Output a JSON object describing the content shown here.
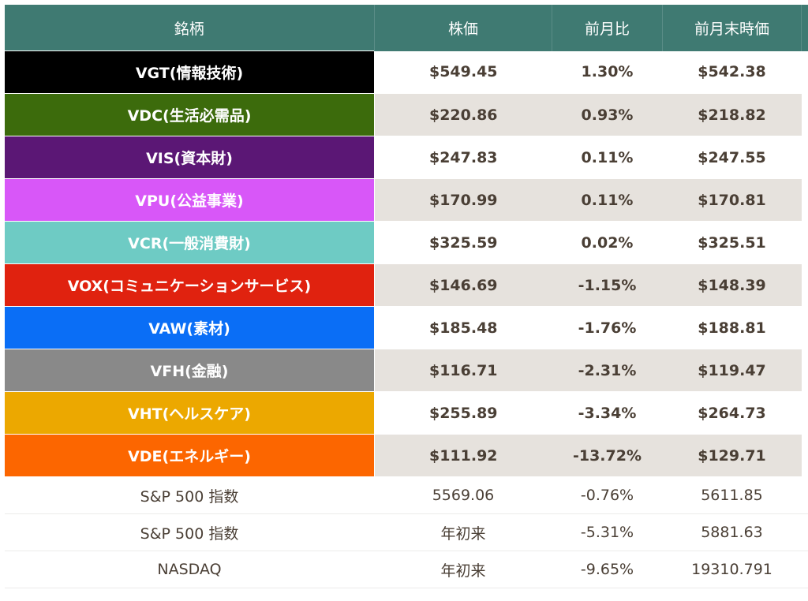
{
  "headers": [
    "銘柄",
    "株価",
    "前月比",
    "前月末時価"
  ],
  "sectors": [
    {
      "name": "VGT(情報技術)",
      "price": "$549.45",
      "change": "1.30%",
      "prev": "$542.38",
      "color": "#000000"
    },
    {
      "name": "VDC(生活必需品)",
      "price": "$220.86",
      "change": "0.93%",
      "prev": "$218.82",
      "color": "#3c6b0c"
    },
    {
      "name": "VIS(資本財)",
      "price": "$247.83",
      "change": "0.11%",
      "prev": "$247.55",
      "color": "#5b1775"
    },
    {
      "name": "VPU(公益事業)",
      "price": "$170.99",
      "change": "0.11%",
      "prev": "$170.81",
      "color": "#d857f8"
    },
    {
      "name": "VCR(一般消費財)",
      "price": "$325.59",
      "change": "0.02%",
      "prev": "$325.51",
      "color": "#6ecbc4"
    },
    {
      "name": "VOX(コミュニケーションサービス)",
      "price": "$146.69",
      "change": "-1.15%",
      "prev": "$148.39",
      "color": "#e0220f"
    },
    {
      "name": "VAW(素材)",
      "price": "$185.48",
      "change": "-1.76%",
      "prev": "$188.81",
      "color": "#0a6ef6"
    },
    {
      "name": "VFH(金融)",
      "price": "$116.71",
      "change": "-2.31%",
      "prev": "$119.47",
      "color": "#898989"
    },
    {
      "name": "VHT(ヘルスケア)",
      "price": "$255.89",
      "change": "-3.34%",
      "prev": "$264.73",
      "color": "#eca800"
    },
    {
      "name": "VDE(エネルギー)",
      "price": "$111.92",
      "change": "-13.72%",
      "prev": "$129.71",
      "color": "#fc6600"
    }
  ],
  "indices": [
    {
      "name": "S&P 500 指数",
      "price": "5569.06",
      "change": "-0.76%",
      "prev": "5611.85"
    },
    {
      "name": "S&P 500 指数",
      "price": "年初来",
      "change": "-5.31%",
      "prev": "5881.63"
    },
    {
      "name": "NASDAQ",
      "price": "年初来",
      "change": "-9.65%",
      "prev": "19310.791"
    }
  ]
}
